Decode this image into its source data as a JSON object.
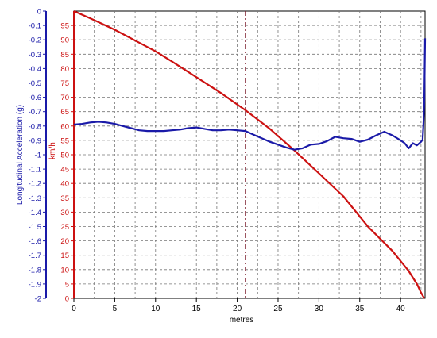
{
  "chart_data": {
    "type": "line",
    "xlabel": "metres",
    "ylabel_left": "Longitudinal Acceleration (g)",
    "ylabel_right": "km/h",
    "xlim": [
      0,
      43
    ],
    "ylim_accel": [
      -2.0,
      0.0
    ],
    "ylim_speed": [
      0,
      100
    ],
    "x_ticks": [
      0,
      5,
      10,
      15,
      20,
      25,
      30,
      35,
      40
    ],
    "accel_ticks": [
      "0",
      "-0.1",
      "-0.2",
      "-0.3",
      "-0.4",
      "-0.5",
      "-0.6",
      "-0.7",
      "-0.8",
      "-0.9",
      "-1",
      "-1.1",
      "-1.2",
      "-1.3",
      "-1.4",
      "-1.5",
      "-1.6",
      "-1.7",
      "-1.8",
      "-1.9",
      "-2"
    ],
    "speed_ticks": [
      "0",
      "5",
      "10",
      "15",
      "20",
      "25",
      "30",
      "35",
      "40",
      "45",
      "50",
      "55",
      "60",
      "65",
      "70",
      "75",
      "80",
      "85",
      "90",
      "95"
    ],
    "grid": true,
    "marker_x": 21,
    "series": [
      {
        "axis": "speed",
        "color": "#cc1111",
        "x": [
          0,
          2,
          5,
          8,
          10,
          12,
          15,
          18,
          21,
          24,
          27,
          30,
          33,
          36,
          39,
          41,
          42,
          42.5,
          42.9
        ],
        "values": [
          100,
          97.5,
          93.5,
          89,
          86,
          82.5,
          77,
          71.5,
          65.5,
          59,
          51.5,
          43.5,
          35.5,
          25,
          16.5,
          9.5,
          5,
          2,
          0
        ]
      },
      {
        "axis": "accel",
        "color": "#1a1aa8",
        "x": [
          0,
          1,
          2,
          3,
          4,
          5,
          6,
          7,
          8,
          9,
          10,
          11,
          12,
          13,
          14,
          15,
          16,
          17,
          18,
          19,
          20,
          21,
          22,
          23,
          24,
          25,
          26,
          27,
          28,
          29,
          30,
          31,
          32,
          33,
          34,
          35,
          36,
          37,
          38,
          39,
          40,
          40.5,
          41,
          41.5,
          42,
          42.5,
          42.7,
          42.8,
          42.9,
          43
        ],
        "values": [
          -0.79,
          -0.785,
          -0.775,
          -0.77,
          -0.775,
          -0.785,
          -0.8,
          -0.815,
          -0.83,
          -0.835,
          -0.835,
          -0.835,
          -0.83,
          -0.825,
          -0.815,
          -0.81,
          -0.82,
          -0.83,
          -0.83,
          -0.825,
          -0.83,
          -0.835,
          -0.86,
          -0.885,
          -0.91,
          -0.93,
          -0.95,
          -0.965,
          -0.955,
          -0.93,
          -0.925,
          -0.905,
          -0.875,
          -0.885,
          -0.89,
          -0.91,
          -0.895,
          -0.865,
          -0.84,
          -0.865,
          -0.9,
          -0.92,
          -0.955,
          -0.92,
          -0.935,
          -0.91,
          -0.895,
          -0.79,
          -0.63,
          -0.19
        ]
      }
    ]
  }
}
